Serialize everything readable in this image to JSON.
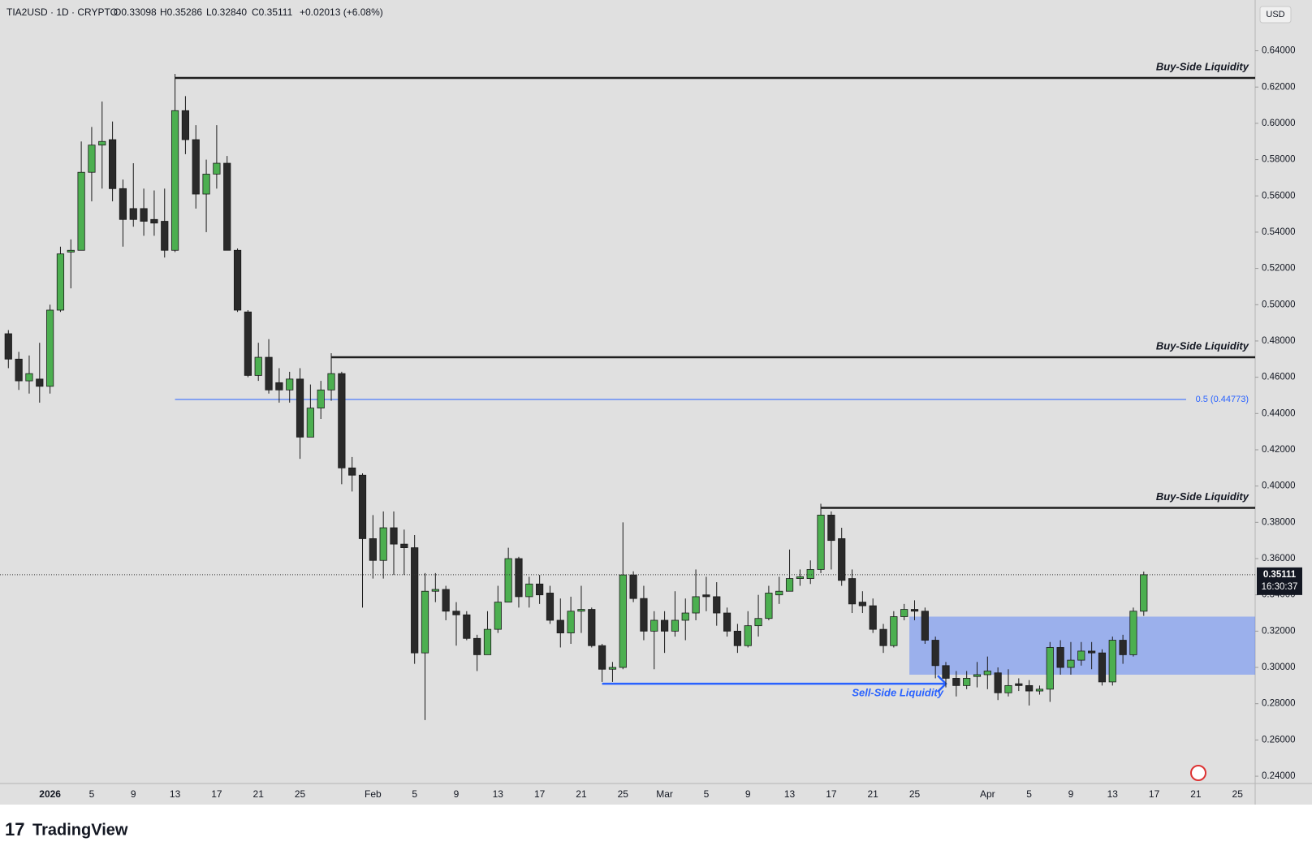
{
  "legend": {
    "symbol": "TIA2USD · 1D · CRYPTO",
    "open": "O0.33098",
    "high": "H0.35286",
    "low": "L0.32840",
    "close": "C0.35111",
    "change": "+0.02013 (+6.08%)"
  },
  "chart_data": {
    "type": "candlestick",
    "currency": "USD",
    "categories": [
      null,
      null,
      null,
      null,
      "2026",
      null,
      null,
      null,
      "5",
      null,
      null,
      null,
      "9",
      null,
      null,
      null,
      "13",
      null,
      null,
      null,
      "17",
      null,
      null,
      null,
      "21",
      null,
      null,
      null,
      "25",
      null,
      null,
      null,
      null,
      null,
      null,
      "Feb",
      null,
      null,
      null,
      "5",
      null,
      null,
      null,
      "9",
      null,
      null,
      null,
      "13",
      null,
      null,
      null,
      "17",
      null,
      null,
      null,
      "21",
      null,
      null,
      null,
      "25",
      null,
      null,
      null,
      "Mar",
      null,
      null,
      null,
      "5",
      null,
      null,
      null,
      "9",
      null,
      null,
      null,
      "13",
      null,
      null,
      null,
      "17",
      null,
      null,
      null,
      "21",
      null,
      null,
      null,
      "25",
      null,
      null,
      null,
      null,
      null,
      null,
      "Apr",
      null,
      null,
      null,
      "5",
      null,
      null,
      null,
      "9",
      null,
      null,
      null,
      "13",
      null,
      null,
      null,
      "17",
      null,
      null,
      null,
      "21",
      null,
      null,
      null,
      "25"
    ],
    "open": [
      0.484,
      0.47,
      0.458,
      0.459,
      0.455,
      0.497,
      0.529,
      0.53,
      0.573,
      0.588,
      0.591,
      0.564,
      0.553,
      0.553,
      0.547,
      0.546,
      0.53,
      0.607,
      0.591,
      0.561,
      0.572,
      0.578,
      0.53,
      0.496,
      0.461,
      0.471,
      0.457,
      0.453,
      0.459,
      0.427,
      0.443,
      0.453,
      0.462,
      0.41,
      0.406,
      0.371,
      0.359,
      0.377,
      0.368,
      0.366,
      0.308,
      0.342,
      0.343,
      0.331,
      0.329,
      0.316,
      0.307,
      0.321,
      0.336,
      0.36,
      0.339,
      0.346,
      0.341,
      0.326,
      0.319,
      0.331,
      0.332,
      0.312,
      0.299,
      0.3,
      0.351,
      0.338,
      0.32,
      0.326,
      0.32,
      0.326,
      0.33,
      0.34,
      0.339,
      0.33,
      0.32,
      0.312,
      0.323,
      0.327,
      0.34,
      0.342,
      0.349,
      0.349,
      0.354,
      0.384,
      0.371,
      0.349,
      0.336,
      0.334,
      0.321,
      0.312,
      0.328,
      0.332,
      0.331,
      0.315,
      0.301,
      0.294,
      0.29,
      0.295,
      0.296,
      0.297,
      0.286,
      0.291,
      0.29,
      0.287,
      0.288,
      0.311,
      0.3,
      0.304,
      0.309,
      0.308,
      0.292,
      0.315,
      0.307,
      0.33098,
      null,
      null,
      null,
      null,
      null,
      null,
      null,
      null,
      null
    ],
    "high": [
      0.486,
      0.474,
      0.472,
      0.479,
      0.5,
      0.532,
      0.536,
      0.59,
      0.598,
      0.612,
      0.601,
      0.569,
      0.578,
      0.564,
      0.563,
      0.564,
      0.625,
      0.615,
      0.599,
      0.58,
      0.599,
      0.582,
      0.531,
      0.497,
      0.479,
      0.481,
      0.465,
      0.463,
      0.465,
      0.456,
      0.458,
      0.471,
      0.463,
      0.416,
      0.407,
      0.384,
      0.386,
      0.386,
      0.376,
      0.373,
      0.352,
      0.352,
      0.345,
      0.336,
      0.331,
      0.318,
      0.331,
      0.345,
      0.366,
      0.361,
      0.35,
      0.351,
      0.345,
      0.338,
      0.339,
      0.345,
      0.333,
      0.313,
      0.303,
      0.38,
      0.353,
      0.345,
      0.331,
      0.331,
      0.342,
      0.338,
      0.354,
      0.35,
      0.347,
      0.333,
      0.324,
      0.331,
      0.34,
      0.345,
      0.35,
      0.365,
      0.354,
      0.359,
      0.388,
      0.386,
      0.377,
      0.354,
      0.342,
      0.338,
      0.324,
      0.331,
      0.335,
      0.337,
      0.333,
      0.317,
      0.303,
      0.298,
      0.298,
      0.303,
      0.306,
      0.3,
      0.299,
      0.294,
      0.293,
      0.29,
      0.314,
      0.315,
      0.314,
      0.314,
      0.314,
      0.31,
      0.317,
      0.318,
      0.333,
      0.35286,
      null,
      null,
      null,
      null,
      null,
      null,
      null,
      null,
      null
    ],
    "low": [
      0.465,
      0.453,
      0.451,
      0.446,
      0.451,
      0.496,
      0.509,
      0.53,
      0.557,
      0.564,
      0.557,
      0.532,
      0.543,
      0.538,
      0.538,
      0.526,
      0.529,
      0.583,
      0.553,
      0.54,
      0.564,
      0.53,
      0.496,
      0.46,
      0.458,
      0.451,
      0.446,
      0.446,
      0.415,
      0.427,
      0.437,
      0.447,
      0.401,
      0.397,
      0.333,
      0.349,
      0.349,
      0.351,
      0.351,
      0.302,
      0.271,
      0.336,
      0.326,
      0.312,
      0.315,
      0.298,
      0.307,
      0.319,
      0.336,
      0.333,
      0.333,
      0.335,
      0.324,
      0.311,
      0.313,
      0.319,
      0.311,
      0.292,
      0.292,
      0.299,
      0.336,
      0.315,
      0.299,
      0.308,
      0.317,
      0.315,
      0.326,
      0.331,
      0.323,
      0.317,
      0.308,
      0.311,
      0.317,
      0.326,
      0.335,
      0.342,
      0.345,
      0.346,
      0.352,
      0.354,
      0.345,
      0.33,
      0.33,
      0.319,
      0.308,
      0.311,
      0.326,
      0.326,
      0.313,
      0.294,
      0.289,
      0.284,
      0.288,
      0.289,
      0.288,
      0.282,
      0.284,
      0.287,
      0.279,
      0.285,
      0.281,
      0.296,
      0.296,
      0.301,
      0.299,
      0.29,
      0.29,
      0.302,
      0.306,
      0.3284,
      null,
      null,
      null,
      null,
      null,
      null,
      null,
      null,
      null
    ],
    "close": [
      0.47,
      0.458,
      0.462,
      0.455,
      0.497,
      0.528,
      0.53,
      0.573,
      0.588,
      0.59,
      0.564,
      0.547,
      0.547,
      0.546,
      0.545,
      0.53,
      0.607,
      0.591,
      0.561,
      0.572,
      0.578,
      0.53,
      0.497,
      0.461,
      0.471,
      0.453,
      0.453,
      0.459,
      0.427,
      0.443,
      0.453,
      0.462,
      0.41,
      0.406,
      0.371,
      0.359,
      0.377,
      0.368,
      0.366,
      0.308,
      0.342,
      0.343,
      0.331,
      0.329,
      0.316,
      0.307,
      0.321,
      0.336,
      0.36,
      0.339,
      0.346,
      0.34,
      0.326,
      0.319,
      0.331,
      0.332,
      0.312,
      0.299,
      0.3,
      0.351,
      0.338,
      0.32,
      0.326,
      0.32,
      0.326,
      0.33,
      0.339,
      0.339,
      0.33,
      0.32,
      0.312,
      0.323,
      0.327,
      0.341,
      0.342,
      0.349,
      0.35,
      0.354,
      0.384,
      0.37,
      0.348,
      0.335,
      0.334,
      0.321,
      0.312,
      0.328,
      0.332,
      0.331,
      0.315,
      0.301,
      0.294,
      0.29,
      0.294,
      0.296,
      0.298,
      0.286,
      0.29,
      0.29,
      0.287,
      0.288,
      0.311,
      0.3,
      0.304,
      0.309,
      0.308,
      0.292,
      0.315,
      0.307,
      0.331,
      0.35111,
      null,
      null,
      null,
      null,
      null,
      null,
      null,
      null,
      null
    ],
    "colors": {
      "up": "#4caf50",
      "down": "#2a2a2a"
    },
    "ylim": [
      0.236,
      0.668
    ],
    "yticks": [
      {
        "value": 0.24,
        "label": "0.24000"
      },
      {
        "value": 0.26,
        "label": "0.26000"
      },
      {
        "value": 0.28,
        "label": "0.28000"
      },
      {
        "value": 0.3,
        "label": "0.30000"
      },
      {
        "value": 0.32,
        "label": "0.32000"
      },
      {
        "value": 0.34,
        "label": "0.34000"
      },
      {
        "value": 0.36,
        "label": "0.36000"
      },
      {
        "value": 0.38,
        "label": "0.38000"
      },
      {
        "value": 0.4,
        "label": "0.40000"
      },
      {
        "value": 0.42,
        "label": "0.42000"
      },
      {
        "value": 0.44,
        "label": "0.44000"
      },
      {
        "value": 0.46,
        "label": "0.46000"
      },
      {
        "value": 0.48,
        "label": "0.48000"
      },
      {
        "value": 0.5,
        "label": "0.50000"
      },
      {
        "value": 0.52,
        "label": "0.52000"
      },
      {
        "value": 0.54,
        "label": "0.54000"
      },
      {
        "value": 0.56,
        "label": "0.56000"
      },
      {
        "value": 0.58,
        "label": "0.58000"
      },
      {
        "value": 0.6,
        "label": "0.60000"
      },
      {
        "value": 0.62,
        "label": "0.62000"
      },
      {
        "value": 0.64,
        "label": "0.64000"
      }
    ],
    "countdown": "16:30:37",
    "levels": [
      {
        "label": "Buy-Side Liquidity",
        "value": 0.625
      },
      {
        "label": "Buy-Side Liquidity",
        "value": 0.471
      },
      {
        "label": "Buy-Side Liquidity",
        "value": 0.388
      },
      {
        "label": "Sell-Side Liquidity",
        "value": 0.291
      }
    ],
    "fib": {
      "label": "0.5 (0.44773)",
      "value": 0.44773
    },
    "zone": {
      "low": 0.296,
      "high": 0.328
    }
  },
  "brand": "TradingView"
}
